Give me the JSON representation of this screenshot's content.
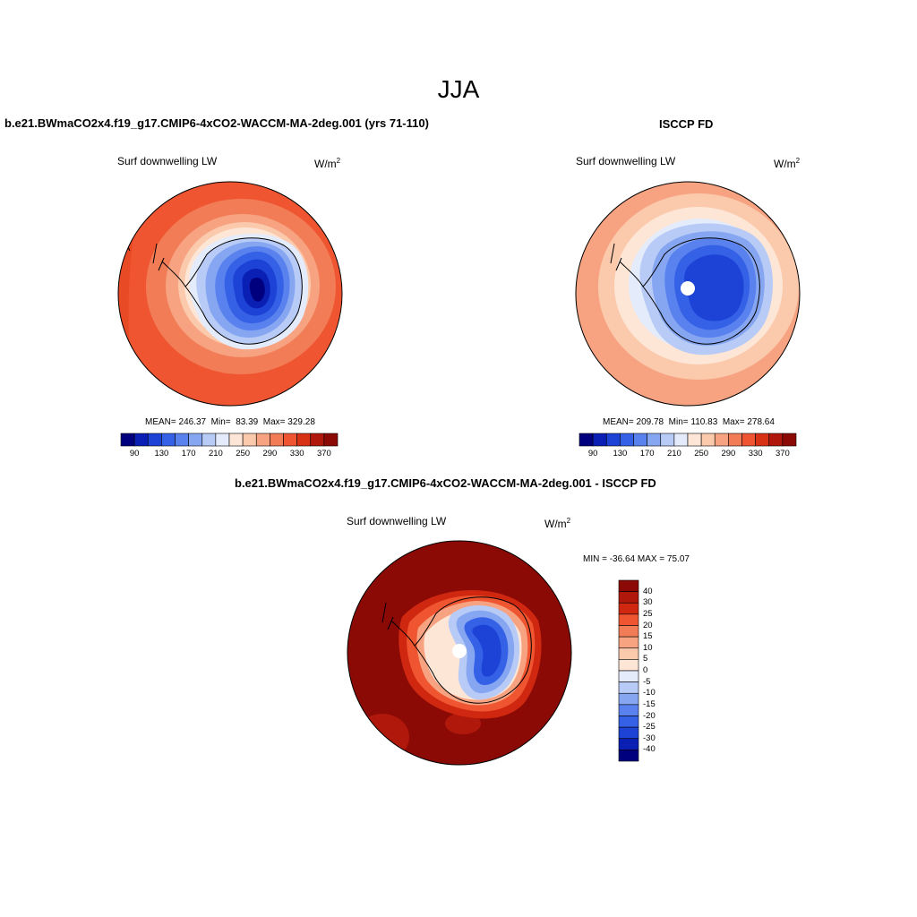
{
  "figure": {
    "title": "JJA"
  },
  "panels": [
    {
      "title": "b.e21.BWmaCO2x4.f19_g17.CMIP6-4xCO2-WACCM-MA-2deg.001 (yrs 71-110)",
      "left_label": "Surf downwelling LW",
      "units": "W/m",
      "units_sup": "2",
      "stats": {
        "mean_label": "MEAN=",
        "mean": "246.37",
        "min_label": "Min=",
        "min": "83.39",
        "max_label": "Max=",
        "max": "329.28"
      },
      "colorbar": {
        "labels": [
          "90",
          "130",
          "170",
          "210",
          "250",
          "290",
          "330",
          "370"
        ]
      }
    },
    {
      "title": "ISCCP FD",
      "left_label": "Surf downwelling LW",
      "units": "W/m",
      "units_sup": "2",
      "stats": {
        "mean_label": "MEAN=",
        "mean": "209.78",
        "min_label": "Min=",
        "min": "110.83",
        "max_label": "Max=",
        "max": "278.64"
      },
      "colorbar": {
        "labels": [
          "90",
          "130",
          "170",
          "210",
          "250",
          "290",
          "330",
          "370"
        ]
      }
    },
    {
      "title": "b.e21.BWmaCO2x4.f19_g17.CMIP6-4xCO2-WACCM-MA-2deg.001 - ISCCP FD",
      "left_label": "Surf downwelling LW",
      "units": "W/m",
      "units_sup": "2",
      "minmax": "MIN = -36.64 MAX =  75.07",
      "colorbar": {
        "labels": [
          "40",
          "30",
          "25",
          "20",
          "15",
          "10",
          "5",
          "0",
          "-5",
          "-10",
          "-15",
          "-20",
          "-25",
          "-30",
          "-40"
        ]
      }
    }
  ],
  "colors": {
    "abs_scale": [
      "#00007f",
      "#0a1fb3",
      "#1c42d6",
      "#3561e6",
      "#5a82ee",
      "#86a6f2",
      "#b7cbf6",
      "#e4ecfb",
      "#fde6d6",
      "#fbc9ac",
      "#f7a382",
      "#f27c56",
      "#ee5530",
      "#d83214",
      "#b0180b",
      "#8c0a06"
    ],
    "diff_scale": [
      "#8c0a06",
      "#b0180b",
      "#d02810",
      "#ee5530",
      "#f27c56",
      "#f7a382",
      "#fbc9ac",
      "#fde6d6",
      "#e4ecfb",
      "#b7cbf6",
      "#86a6f2",
      "#5a82ee",
      "#3561e6",
      "#1c42d6",
      "#0a1fb3",
      "#00007f"
    ]
  }
}
